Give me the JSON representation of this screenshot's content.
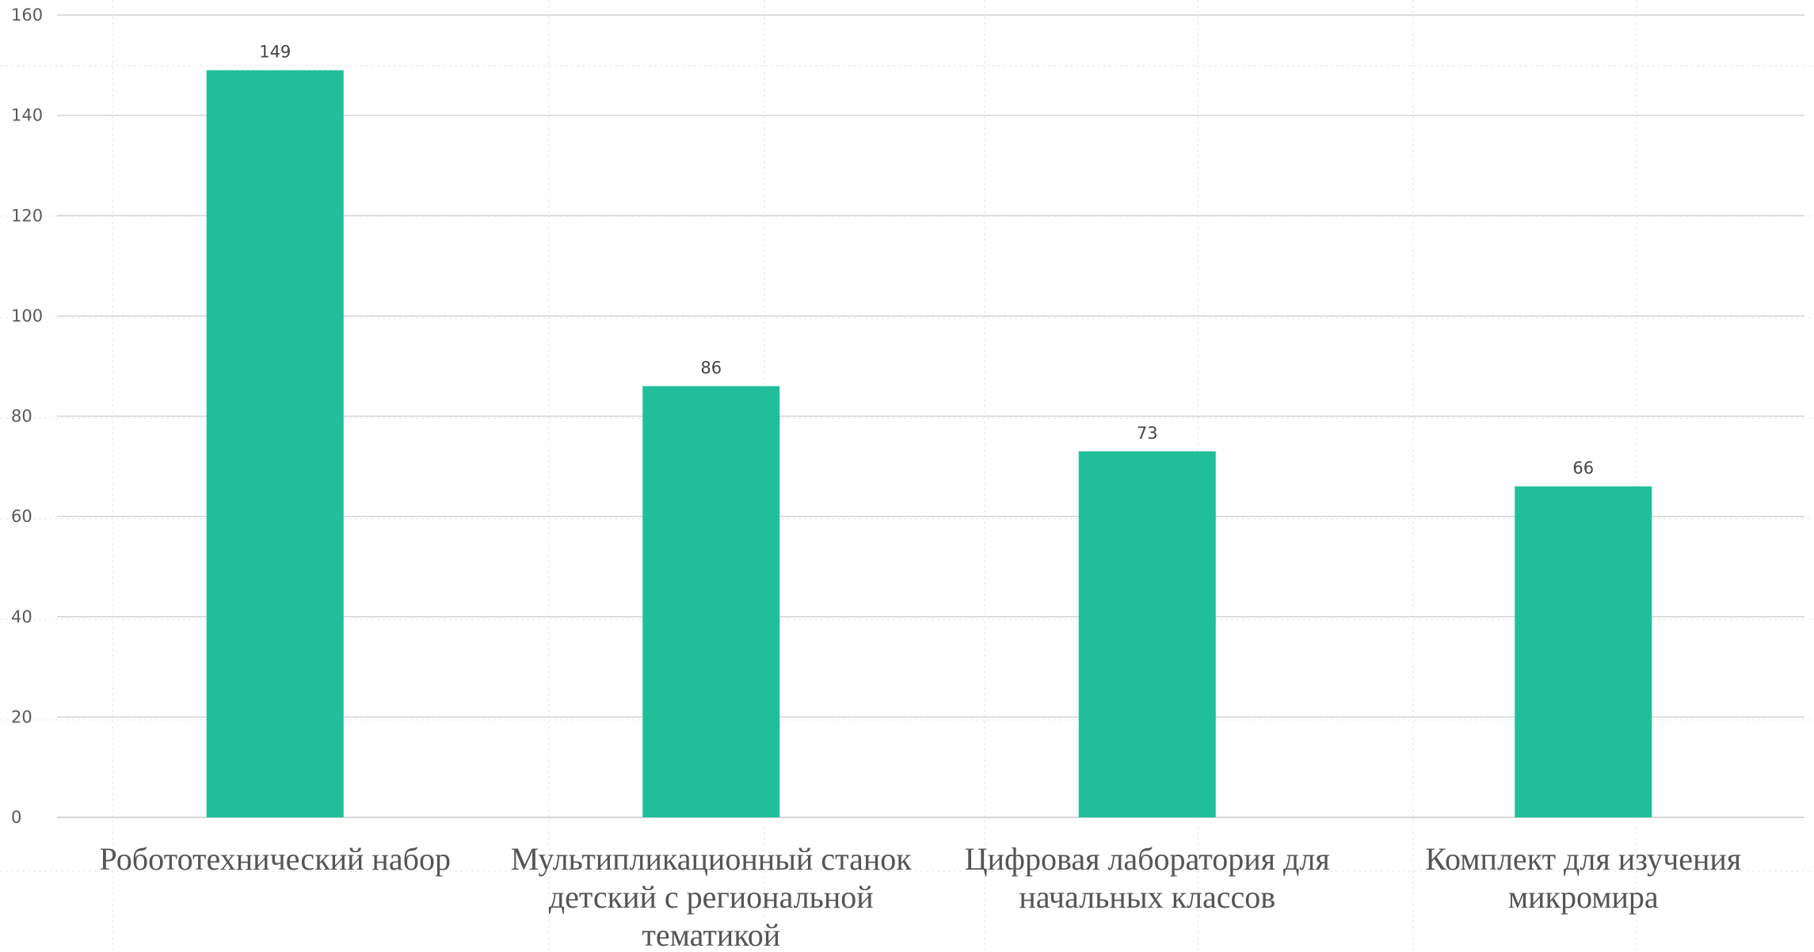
{
  "chart_data": {
    "type": "bar",
    "title": "",
    "xlabel": "",
    "ylabel": "",
    "categories": [
      [
        "Робототехнический набор"
      ],
      [
        "Мультипликационный станок",
        "детский с региональной",
        "тематикой"
      ],
      [
        "Цифровая лаборатория для",
        "начальных классов"
      ],
      [
        "Комплект для изучения",
        "микромира"
      ]
    ],
    "values": [
      149,
      86,
      73,
      66
    ],
    "data_labels": [
      "149",
      "86",
      "73",
      "66"
    ],
    "ylim": [
      0,
      160
    ],
    "yticks": [
      0,
      20,
      40,
      60,
      80,
      100,
      120,
      140,
      160
    ],
    "ytick_labels": [
      "0",
      "20",
      "40",
      "60",
      "80",
      "100",
      "120",
      "140",
      "160"
    ],
    "grid": true,
    "legend": "none",
    "bar_color": "#20bf9a"
  }
}
